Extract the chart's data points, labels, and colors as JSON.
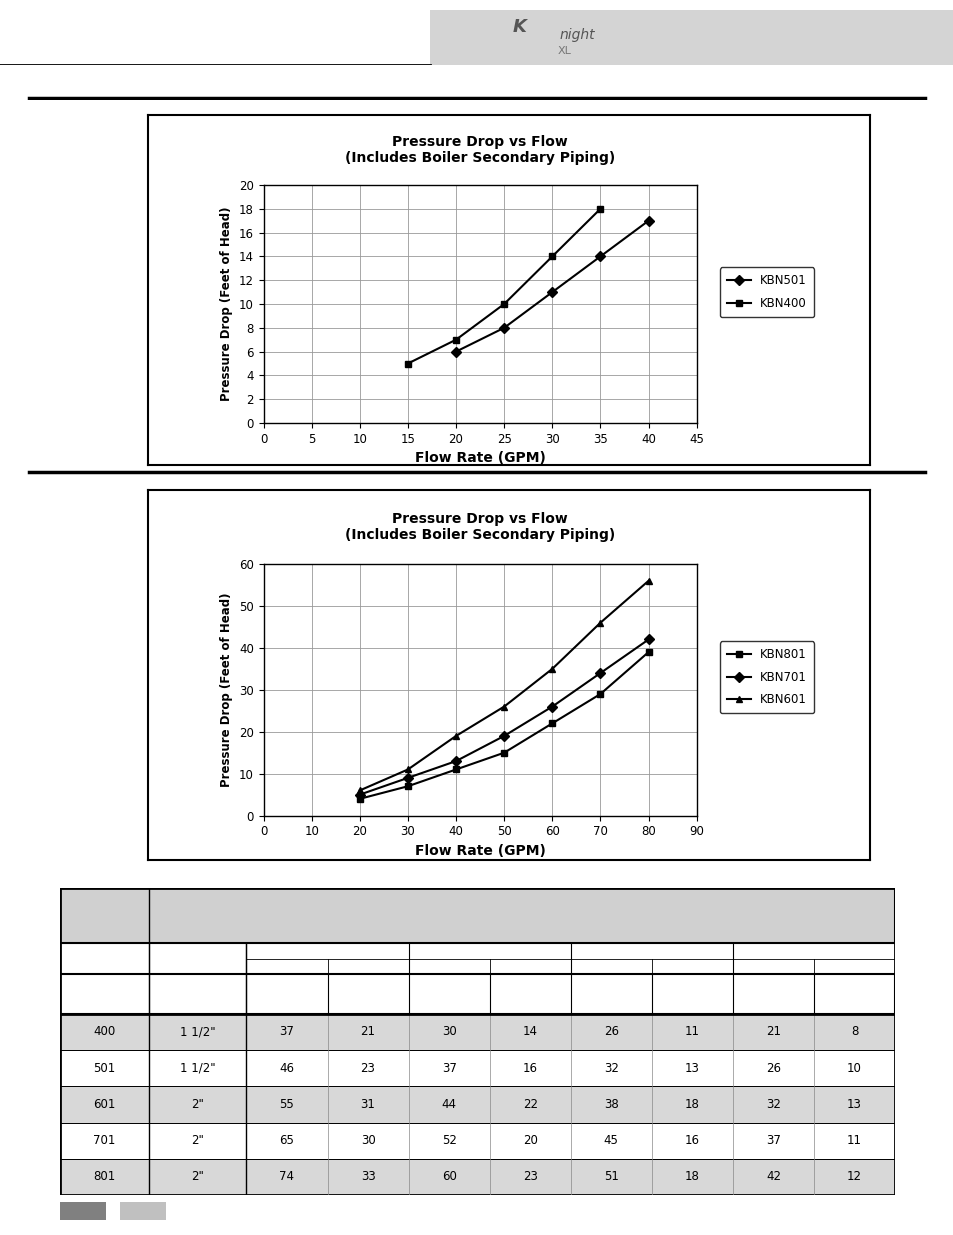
{
  "chart1": {
    "title": "Pressure Drop vs Flow\n(Includes Boiler Secondary Piping)",
    "xlabel": "Flow Rate (GPM)",
    "ylabel": "Pressure Drop (Feet of Head)",
    "xlim": [
      0,
      45
    ],
    "ylim": [
      0,
      20
    ],
    "xticks": [
      0,
      5,
      10,
      15,
      20,
      25,
      30,
      35,
      40,
      45
    ],
    "yticks": [
      0,
      2,
      4,
      6,
      8,
      10,
      12,
      14,
      16,
      18,
      20
    ],
    "series": [
      {
        "label": "KBN501",
        "x": [
          20,
          25,
          30,
          35,
          40
        ],
        "y": [
          6,
          8,
          11,
          14,
          17
        ],
        "marker": "D",
        "color": "#000000"
      },
      {
        "label": "KBN400",
        "x": [
          15,
          20,
          25,
          30,
          35
        ],
        "y": [
          5,
          7,
          10,
          14,
          18
        ],
        "marker": "s",
        "color": "#000000"
      }
    ]
  },
  "chart2": {
    "title": "Pressure Drop vs Flow\n(Includes Boiler Secondary Piping)",
    "xlabel": "Flow Rate (GPM)",
    "ylabel": "Pressure Drop (Feet of Head)",
    "xlim": [
      0,
      90
    ],
    "ylim": [
      0,
      60
    ],
    "xticks": [
      0,
      10,
      20,
      30,
      40,
      50,
      60,
      70,
      80,
      90
    ],
    "yticks": [
      0,
      10,
      20,
      30,
      40,
      50,
      60
    ],
    "series": [
      {
        "label": "KBN801",
        "x": [
          20,
          30,
          40,
          50,
          60,
          70,
          80
        ],
        "y": [
          4,
          7,
          11,
          15,
          22,
          29,
          39
        ],
        "marker": "s",
        "color": "#000000"
      },
      {
        "label": "KBN701",
        "x": [
          20,
          30,
          40,
          50,
          60,
          70,
          80
        ],
        "y": [
          5,
          9,
          13,
          19,
          26,
          34,
          42
        ],
        "marker": "D",
        "color": "#000000"
      },
      {
        "label": "KBN601",
        "x": [
          20,
          30,
          40,
          50,
          60,
          70,
          80
        ],
        "y": [
          6,
          11,
          19,
          26,
          35,
          46,
          56
        ],
        "marker": "^",
        "color": "#000000"
      }
    ]
  },
  "table_rows": [
    [
      "400",
      "1 1/2\"",
      "37",
      "21",
      "30",
      "14",
      "26",
      "11",
      "21",
      "8"
    ],
    [
      "501",
      "1 1/2\"",
      "46",
      "23",
      "37",
      "16",
      "32",
      "13",
      "26",
      "10"
    ],
    [
      "601",
      "2\"",
      "55",
      "31",
      "44",
      "22",
      "38",
      "18",
      "32",
      "13"
    ],
    [
      "701",
      "2\"",
      "65",
      "30",
      "52",
      "20",
      "45",
      "16",
      "37",
      "11"
    ],
    [
      "801",
      "2\"",
      "74",
      "33",
      "60",
      "23",
      "51",
      "18",
      "42",
      "12"
    ]
  ],
  "page_bg": "#ffffff",
  "grid_color": "#999999",
  "header_bg": "#d0d0d0",
  "row_odd_bg": "#d8d8d8",
  "row_even_bg": "#ffffff",
  "swatch1": "#808080",
  "swatch2": "#c0c0c0"
}
